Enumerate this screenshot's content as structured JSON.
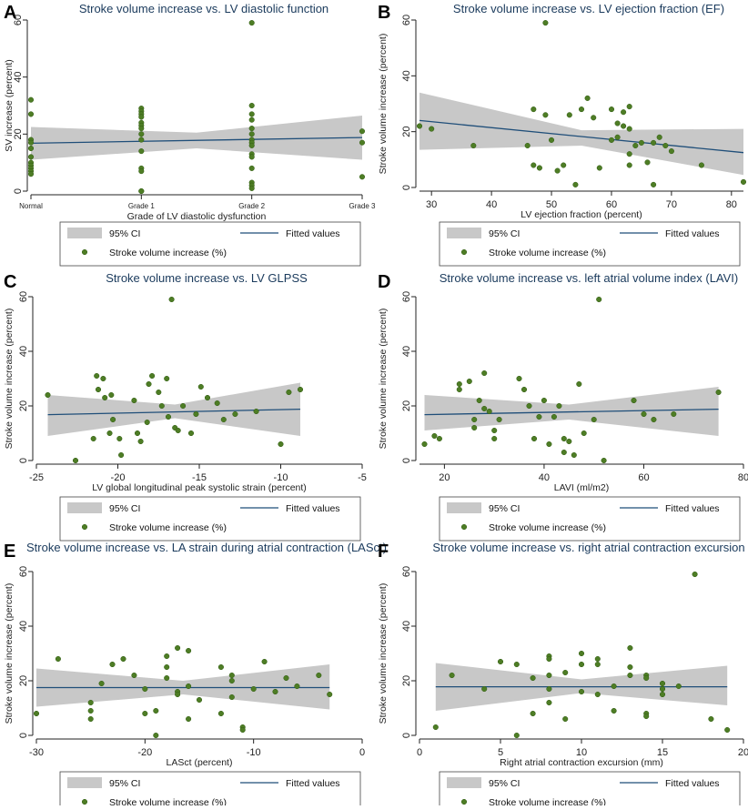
{
  "colors": {
    "ci_fill": "#c8c8c8",
    "fit_line": "#1f4e79",
    "points": "#4e7d25",
    "points_edge": "#2f5a12",
    "title_text": "#1a3a5c",
    "axis": "#222222"
  },
  "legend": {
    "ci_label": "95% CI",
    "fit_label": "Fitted values",
    "points_label": "Stroke volume increase (%)"
  },
  "chart_data": [
    {
      "panel_letter": "A",
      "type": "scatter",
      "title": "Stroke volume increase vs. LV diastolic function",
      "xlabel": "Grade of LV diastolic dysfunction",
      "ylabel": "SV increase (percent)",
      "xlim": [
        0,
        3
      ],
      "ylim": [
        0,
        60
      ],
      "xticks": [
        0,
        1,
        2,
        3
      ],
      "xtick_labels": [
        "Normal",
        "Grade 1",
        "Grade 2",
        "Grade 3"
      ],
      "yticks": [
        0,
        20,
        40,
        60
      ],
      "fit": {
        "x": [
          0,
          3
        ],
        "y": [
          16.8,
          18.8
        ]
      },
      "ci": {
        "x": [
          0,
          1.5,
          3
        ],
        "lower": [
          11.0,
          15.0,
          11.0
        ],
        "upper": [
          22.5,
          20.5,
          26.5
        ]
      },
      "x": [
        0,
        0,
        0,
        0,
        0,
        0,
        0,
        0,
        0,
        0,
        0,
        1,
        1,
        1,
        1,
        1,
        1,
        1,
        1,
        1,
        1,
        1,
        1,
        1,
        1,
        2,
        2,
        2,
        2,
        2,
        2,
        2,
        2,
        2,
        2,
        2,
        2,
        2,
        2,
        2,
        3,
        3,
        3
      ],
      "y": [
        32,
        27,
        18,
        17,
        15,
        12,
        10,
        9,
        8,
        7,
        6,
        29,
        28,
        27,
        26,
        24,
        23,
        22,
        20,
        18,
        14,
        8,
        7,
        0,
        0,
        59,
        30,
        27,
        25,
        22,
        20,
        18,
        17,
        16,
        13,
        12,
        8,
        3,
        2,
        1,
        21,
        17,
        5
      ]
    },
    {
      "panel_letter": "B",
      "type": "scatter",
      "title": "Stroke volume increase vs. LV ejection fraction (EF)",
      "xlabel": "LV ejection fraction (percent)",
      "ylabel": "Stroke volume increase (percent)",
      "xlim": [
        28,
        82
      ],
      "ylim": [
        0,
        60
      ],
      "xticks": [
        30,
        40,
        50,
        60,
        70,
        80
      ],
      "xtick_labels": [
        "30",
        "40",
        "50",
        "60",
        "70",
        "80"
      ],
      "yticks": [
        0,
        20,
        40,
        60
      ],
      "fit": {
        "x": [
          28,
          82
        ],
        "y": [
          24.0,
          12.5
        ]
      },
      "ci": {
        "x": [
          28,
          55,
          82
        ],
        "lower": [
          13.5,
          15.0,
          4.5
        ],
        "upper": [
          34.0,
          20.5,
          21.0
        ]
      },
      "x": [
        28,
        30,
        37,
        46,
        47,
        47,
        48,
        49,
        49,
        50,
        51,
        52,
        53,
        54,
        55,
        56,
        57,
        58,
        60,
        60,
        61,
        61,
        62,
        62,
        63,
        63,
        63,
        63,
        64,
        65,
        66,
        67,
        67,
        68,
        69,
        70,
        75,
        82
      ],
      "y": [
        22,
        21,
        15,
        15,
        8,
        28,
        7,
        59,
        26,
        17,
        6,
        8,
        26,
        1,
        28,
        32,
        25,
        7,
        17,
        28,
        18,
        23,
        22,
        27,
        8,
        21,
        29,
        12,
        15,
        16,
        9,
        1,
        16,
        18,
        15,
        13,
        8,
        2
      ]
    },
    {
      "panel_letter": "C",
      "type": "scatter",
      "title": "Stroke volume increase vs. LV GLPSS",
      "xlabel": "LV global longitudinal peak systolic strain (percent)",
      "ylabel": "Stroke volume increase (percent)",
      "xlim": [
        -25,
        -5
      ],
      "ylim": [
        0,
        60
      ],
      "xticks": [
        -25,
        -20,
        -15,
        -10,
        -5
      ],
      "xtick_labels": [
        "-25",
        "-20",
        "-15",
        "-10",
        "-5"
      ],
      "yticks": [
        0,
        20,
        40,
        60
      ],
      "fit": {
        "x": [
          -24.3,
          -8.8
        ],
        "y": [
          16.8,
          18.8
        ]
      },
      "ci": {
        "x": [
          -24.3,
          -16.5,
          -8.8
        ],
        "lower": [
          9.0,
          15.5,
          9.0
        ],
        "upper": [
          24.0,
          20.5,
          28.5
        ]
      },
      "x": [
        -24.3,
        -22.6,
        -21.5,
        -21.3,
        -21.2,
        -20.9,
        -20.8,
        -20.5,
        -20.4,
        -20.3,
        -19.9,
        -19.8,
        -19.0,
        -18.8,
        -18.6,
        -18.2,
        -18.1,
        -17.9,
        -17.5,
        -17.3,
        -17.0,
        -16.9,
        -16.7,
        -16.5,
        -16.3,
        -16.0,
        -15.5,
        -15.2,
        -14.9,
        -14.5,
        -13.9,
        -13.5,
        -12.8,
        -11.5,
        -10.0,
        -9.5,
        -8.8
      ],
      "y": [
        24,
        0,
        8,
        31,
        26,
        30,
        23,
        10,
        24,
        15,
        8,
        2,
        22,
        10,
        7,
        14,
        28,
        31,
        25,
        20,
        30,
        16,
        59,
        12,
        11,
        20,
        10,
        17,
        27,
        23,
        21,
        15,
        17,
        18,
        6,
        25,
        26
      ]
    },
    {
      "panel_letter": "D",
      "type": "scatter",
      "title": "Stroke volume increase vs. left atrial volume index (LAVI)",
      "xlabel": "LAVI (ml/m2)",
      "ylabel": "Stroke volume increase (percent)",
      "xlim": [
        15,
        80
      ],
      "ylim": [
        0,
        60
      ],
      "xticks": [
        20,
        40,
        60,
        80
      ],
      "xtick_labels": [
        "20",
        "40",
        "60",
        "80"
      ],
      "yticks": [
        0,
        20,
        40,
        60
      ],
      "fit": {
        "x": [
          16,
          75
        ],
        "y": [
          16.8,
          18.8
        ]
      },
      "ci": {
        "x": [
          16,
          45,
          75
        ],
        "lower": [
          11.0,
          15.0,
          9.0
        ],
        "upper": [
          24.0,
          20.5,
          27.0
        ]
      },
      "x": [
        16,
        18,
        19,
        23,
        23,
        25,
        26,
        26,
        27,
        28,
        28,
        29,
        30,
        30,
        31,
        35,
        36,
        37,
        38,
        39,
        40,
        41,
        42,
        43,
        44,
        44,
        45,
        46,
        47,
        48,
        50,
        51,
        52,
        58,
        60,
        62,
        66,
        75
      ],
      "y": [
        6,
        9,
        8,
        28,
        26,
        29,
        12,
        15,
        22,
        19,
        32,
        18,
        8,
        11,
        15,
        30,
        26,
        20,
        8,
        16,
        22,
        6,
        16,
        20,
        3,
        8,
        7,
        2,
        28,
        10,
        15,
        59,
        0,
        22,
        17,
        15,
        17,
        25
      ]
    },
    {
      "panel_letter": "E",
      "type": "scatter",
      "title": "Stroke volume increase vs. LA strain during atrial contraction (LASct)",
      "xlabel": "LASct (percent)",
      "ylabel": "Stroke volume increase (percent)",
      "xlim": [
        -30,
        0
      ],
      "ylim": [
        0,
        60
      ],
      "xticks": [
        -30,
        -20,
        -10,
        0
      ],
      "xtick_labels": [
        "-30",
        "-20",
        "-10",
        "0"
      ],
      "yticks": [
        0,
        20,
        40,
        60
      ],
      "fit": {
        "x": [
          -30,
          -3
        ],
        "y": [
          17.5,
          17.5
        ]
      },
      "ci": {
        "x": [
          -30,
          -16.5,
          -3
        ],
        "lower": [
          10.5,
          15.0,
          9.5
        ],
        "upper": [
          24.5,
          20.0,
          26.0
        ]
      },
      "x": [
        -30,
        -28,
        -25,
        -25,
        -25,
        -24,
        -23,
        -22,
        -21,
        -20,
        -20,
        -19,
        -19,
        -18,
        -18,
        -18,
        -17,
        -17,
        -17,
        -16,
        -16,
        -16,
        -15,
        -13,
        -13,
        -12,
        -12,
        -12,
        -11,
        -11,
        -10,
        -9,
        -8,
        -7,
        -6,
        -4,
        -3
      ],
      "y": [
        8,
        28,
        12,
        9,
        6,
        19,
        26,
        28,
        22,
        17,
        8,
        9,
        0,
        29,
        25,
        21,
        32,
        16,
        15,
        31,
        18,
        6,
        13,
        25,
        8,
        22,
        20,
        14,
        3,
        2,
        17,
        27,
        16,
        21,
        18,
        22,
        15
      ]
    },
    {
      "panel_letter": "F",
      "type": "scatter",
      "title": "Stroke volume increase vs. right atrial contraction excursion",
      "xlabel": "Right atrial contraction excursion (mm)",
      "ylabel": "Stroke volume increase (percent)",
      "xlim": [
        0,
        20
      ],
      "ylim": [
        0,
        60
      ],
      "xticks": [
        0,
        5,
        10,
        15,
        20
      ],
      "xtick_labels": [
        "0",
        "5",
        "10",
        "15",
        "20"
      ],
      "yticks": [
        0,
        20,
        40,
        60
      ],
      "fit": {
        "x": [
          1,
          19
        ],
        "y": [
          17.8,
          17.8
        ]
      },
      "ci": {
        "x": [
          1,
          10,
          19
        ],
        "lower": [
          9.0,
          15.5,
          11.0
        ],
        "upper": [
          26.5,
          20.5,
          25.5
        ]
      },
      "x": [
        1,
        2,
        4,
        5,
        6,
        6,
        7,
        7,
        8,
        8,
        8,
        8,
        8,
        9,
        9,
        10,
        10,
        10,
        11,
        11,
        11,
        12,
        12,
        13,
        13,
        13,
        14,
        14,
        14,
        14,
        15,
        15,
        15,
        16,
        17,
        18,
        19
      ],
      "y": [
        3,
        22,
        17,
        27,
        26,
        0,
        21,
        8,
        29,
        28,
        22,
        17,
        12,
        6,
        23,
        26,
        30,
        16,
        28,
        26,
        15,
        18,
        9,
        22,
        25,
        32,
        22,
        21,
        8,
        7,
        19,
        17,
        15,
        18,
        59,
        6,
        2
      ]
    }
  ]
}
